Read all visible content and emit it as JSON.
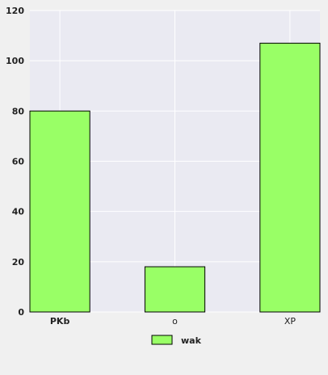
{
  "chart_data": {
    "type": "bar",
    "categories": [
      "PKb",
      "o",
      "XP"
    ],
    "series": [
      {
        "name": "wak",
        "values": [
          80,
          18,
          107
        ],
        "color": "#99ff66"
      }
    ],
    "title": "",
    "xlabel": "",
    "ylabel": "",
    "ylim": [
      0,
      120
    ],
    "yticks": [
      0,
      20,
      40,
      60,
      80,
      100,
      120
    ],
    "grid": true,
    "legend_position": "bottom-center",
    "colors": {
      "plot_background": "#eaeaf2",
      "page_background": "#f0f0f0",
      "grid": "#ffffff",
      "bar_edge": "#000000"
    }
  }
}
